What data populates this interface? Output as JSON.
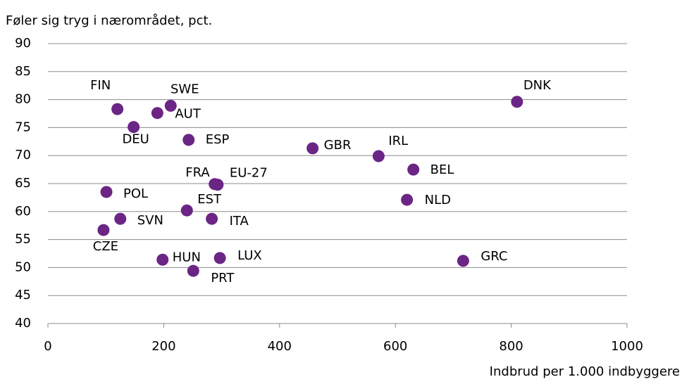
{
  "chart_data": {
    "type": "scatter",
    "title": "Føler sig tryg i nærområdet, pct.",
    "x_label": "Indbrud per 1.000 indbyggere",
    "labels": [
      "FIN",
      "SWE",
      "AUT",
      "DEU",
      "ESP",
      "GBR",
      "IRL",
      "DNK",
      "BEL",
      "FRA",
      "EU-27",
      "POL",
      "EST",
      "NLD",
      "SVN",
      "ITA",
      "CZE",
      "HUN",
      "LUX",
      "PRT",
      "GRC"
    ],
    "x": [
      120,
      212,
      189,
      148,
      243,
      457,
      571,
      810,
      631,
      288,
      293,
      101,
      240,
      620,
      125,
      283,
      96,
      198,
      297,
      251,
      717
    ],
    "values": [
      78.3,
      78.9,
      77.6,
      75.1,
      72.8,
      71.3,
      69.9,
      79.6,
      67.5,
      64.9,
      64.8,
      63.5,
      60.2,
      62.1,
      58.7,
      58.7,
      56.7,
      51.4,
      51.7,
      49.4,
      51.2
    ],
    "color": "#6a2585",
    "xlim": [
      0,
      1000
    ],
    "xticks": [
      0,
      200,
      400,
      600,
      800,
      1000
    ],
    "ylim": [
      40,
      90
    ],
    "yticks": [
      40,
      45,
      50,
      55,
      60,
      65,
      70,
      75,
      80,
      85,
      90
    ],
    "grid": true
  }
}
